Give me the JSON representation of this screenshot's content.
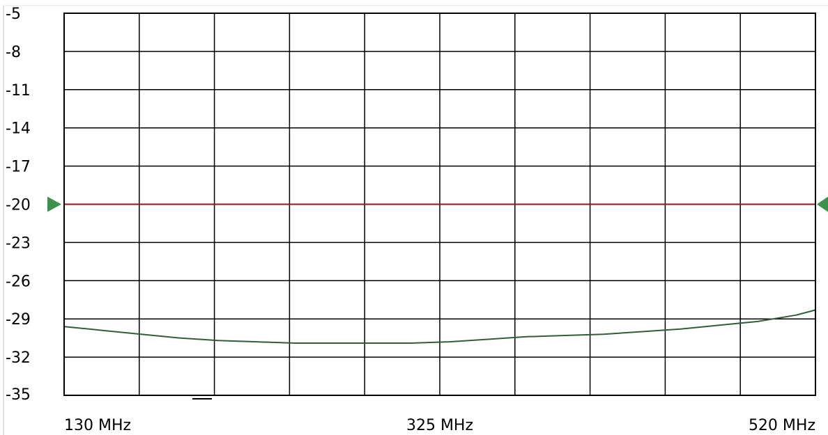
{
  "chart_data": {
    "type": "line",
    "title": "",
    "xlabel": "",
    "ylabel": "",
    "xlim": [
      130,
      520
    ],
    "ylim": [
      -35,
      -5
    ],
    "x_unit": "MHz",
    "grid": true,
    "y_ticks": [
      -5,
      -8,
      -11,
      -14,
      -17,
      -20,
      -23,
      -26,
      -29,
      -32,
      -35
    ],
    "y_tick_labels": [
      "-5",
      "-8",
      "-11",
      "-14",
      "-17",
      "-20",
      "-23",
      "-26",
      "-29",
      "-32",
      "-35"
    ],
    "x_tick_labels": [
      {
        "value": 130,
        "label": "130 MHz"
      },
      {
        "value": 325,
        "label": "325 MHz"
      },
      {
        "value": 520,
        "label": "520 MHz"
      }
    ],
    "x_divisions": 10,
    "reference_line": {
      "y": -20,
      "color": "#8b1a1a"
    },
    "reference_marker_color": "#3f8f4f",
    "series": [
      {
        "color": "#2f5f35",
        "x": [
          130,
          150,
          170,
          190,
          210,
          230,
          250,
          270,
          290,
          310,
          330,
          350,
          370,
          390,
          410,
          430,
          450,
          470,
          490,
          510,
          520
        ],
        "y": [
          -29.6,
          -29.9,
          -30.2,
          -30.5,
          -30.7,
          -30.8,
          -30.9,
          -30.9,
          -30.9,
          -30.9,
          -30.8,
          -30.6,
          -30.4,
          -30.3,
          -30.2,
          -30.0,
          -29.8,
          -29.5,
          -29.2,
          -28.7,
          -28.3
        ]
      }
    ]
  }
}
